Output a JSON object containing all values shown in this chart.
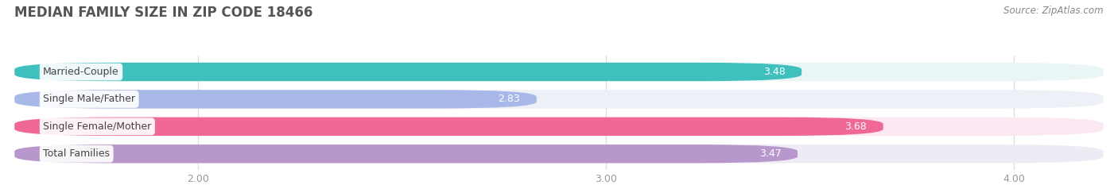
{
  "title": "MEDIAN FAMILY SIZE IN ZIP CODE 18466",
  "source": "Source: ZipAtlas.com",
  "categories": [
    "Married-Couple",
    "Single Male/Father",
    "Single Female/Mother",
    "Total Families"
  ],
  "values": [
    3.48,
    2.83,
    3.68,
    3.47
  ],
  "bar_colors": [
    "#40bfbf",
    "#a8b8e8",
    "#f06898",
    "#b898cc"
  ],
  "bar_bg_colors": [
    "#eaf6f6",
    "#eef0f8",
    "#fce8f2",
    "#eeebf5"
  ],
  "xlim": [
    1.55,
    4.22
  ],
  "xmin": 1.55,
  "xmax": 4.22,
  "xticks": [
    2.0,
    3.0,
    4.0
  ],
  "title_fontsize": 12,
  "label_fontsize": 9,
  "value_fontsize": 9,
  "source_fontsize": 8.5,
  "tick_fontsize": 9,
  "background_color": "#ffffff",
  "bar_area_bg": "#f7f7f7"
}
